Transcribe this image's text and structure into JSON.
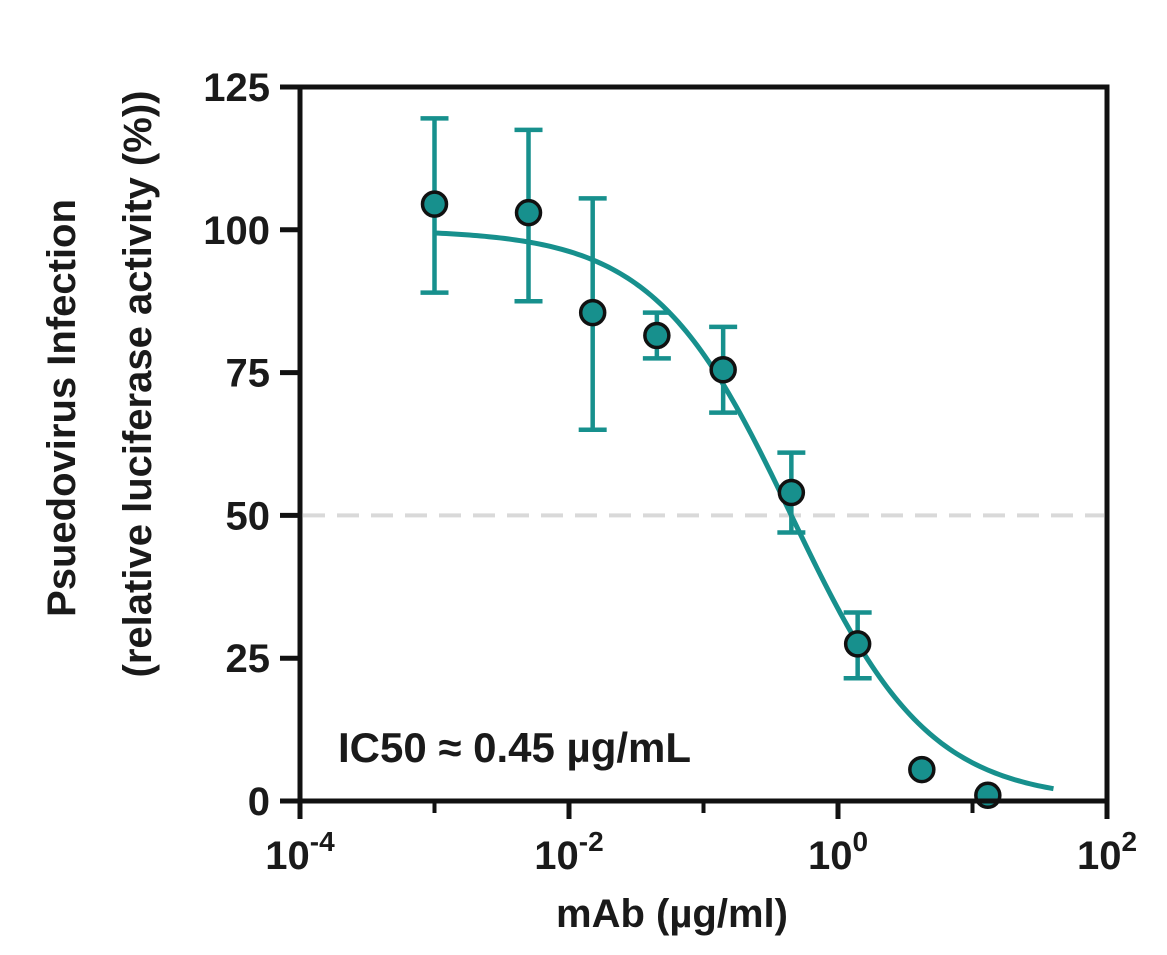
{
  "chart_data": {
    "type": "scatter",
    "xscale": "log",
    "xlim": [
      0.0001,
      100
    ],
    "ylim": [
      0,
      125
    ],
    "xticks": [
      {
        "value": 0.0001,
        "base": "10",
        "exp": "-4"
      },
      {
        "value": 0.01,
        "base": "10",
        "exp": "-2"
      },
      {
        "value": 1,
        "base": "10",
        "exp": "0"
      },
      {
        "value": 100,
        "base": "10",
        "exp": "2"
      }
    ],
    "yticks": [
      {
        "value": 0,
        "label": "0"
      },
      {
        "value": 25,
        "label": "25"
      },
      {
        "value": 50,
        "label": "50"
      },
      {
        "value": 75,
        "label": "75"
      },
      {
        "value": 100,
        "label": "100"
      },
      {
        "value": 125,
        "label": "125"
      }
    ],
    "xlabel": "mAb  (µg/ml)",
    "ylabel_line1": "Psuedovirus Infection",
    "ylabel_line2": "(relative luciferase activity (%))",
    "annotation": "IC50 ≈ 0.45 µg/mL",
    "reference_line": {
      "y": 50,
      "style": "dashed",
      "color": "#d9d9d9"
    },
    "series": [
      {
        "color": "#17908d",
        "points": [
          {
            "x": 0.001,
            "y": 104.5,
            "err_low": 89,
            "err_high": 119.5
          },
          {
            "x": 0.005,
            "y": 103,
            "err_low": 87.5,
            "err_high": 117.5
          },
          {
            "x": 0.015,
            "y": 85.5,
            "err_low": 65,
            "err_high": 105.5
          },
          {
            "x": 0.045,
            "y": 81.5,
            "err_low": 77.5,
            "err_high": 85.5
          },
          {
            "x": 0.14,
            "y": 75.5,
            "err_low": 68,
            "err_high": 83
          },
          {
            "x": 0.45,
            "y": 54,
            "err_low": 47,
            "err_high": 61
          },
          {
            "x": 1.4,
            "y": 27.5,
            "err_low": 21.5,
            "err_high": 33
          },
          {
            "x": 4.2,
            "y": 5.5
          },
          {
            "x": 13,
            "y": 1
          }
        ]
      }
    ],
    "fit": {
      "model": "4PL",
      "top": 100,
      "bottom": 0,
      "ic50": 0.45,
      "hill": 0.85,
      "x_range": [
        0.001,
        40
      ],
      "color": "#17908d"
    }
  }
}
